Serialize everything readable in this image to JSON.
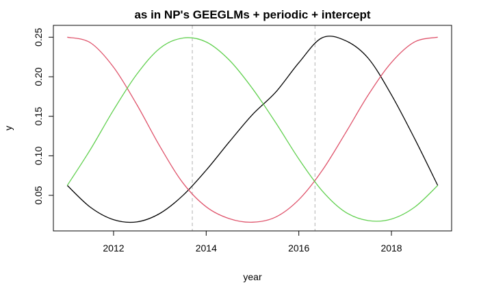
{
  "chart_data": {
    "type": "line",
    "title": "as in NP's GEEGLMs + periodic + intercept",
    "xlabel": "year",
    "ylabel": "y",
    "xlim": [
      2010.7,
      2019.3
    ],
    "ylim": [
      0.005,
      0.265
    ],
    "x_ticks": [
      2012,
      2014,
      2016,
      2018
    ],
    "y_ticks": [
      0.05,
      0.1,
      0.15,
      0.2,
      0.25
    ],
    "x_tick_labels": [
      "2012",
      "2014",
      "2016",
      "2018"
    ],
    "y_tick_labels": [
      "0.05",
      "0.10",
      "0.15",
      "0.20",
      "0.25"
    ],
    "grid": false,
    "legend": "none",
    "vlines": [
      2013.7,
      2016.35
    ],
    "vline_color": "#bebebe",
    "x": [
      2011.0,
      2011.5,
      2012.0,
      2012.5,
      2013.0,
      2013.5,
      2014.0,
      2014.5,
      2015.0,
      2015.5,
      2016.0,
      2016.5,
      2017.0,
      2017.5,
      2018.0,
      2018.5,
      2019.0
    ],
    "series": [
      {
        "color": "#000000",
        "values": [
          0.0625,
          0.0349,
          0.0192,
          0.0164,
          0.0271,
          0.05,
          0.0818,
          0.1177,
          0.1522,
          0.1804,
          0.2177,
          0.2492,
          0.2459,
          0.2233,
          0.1771,
          0.1218,
          0.0625
        ]
      },
      {
        "color": "#df536b",
        "values": [
          0.25,
          0.243,
          0.212,
          0.165,
          0.112,
          0.0655,
          0.0355,
          0.0205,
          0.016,
          0.0225,
          0.0445,
          0.081,
          0.128,
          0.177,
          0.218,
          0.244,
          0.25
        ]
      },
      {
        "color": "#61d04f",
        "values": [
          0.0625,
          0.108,
          0.158,
          0.203,
          0.236,
          0.249,
          0.244,
          0.221,
          0.185,
          0.142,
          0.096,
          0.056,
          0.029,
          0.018,
          0.02,
          0.035,
          0.0625
        ]
      }
    ]
  }
}
